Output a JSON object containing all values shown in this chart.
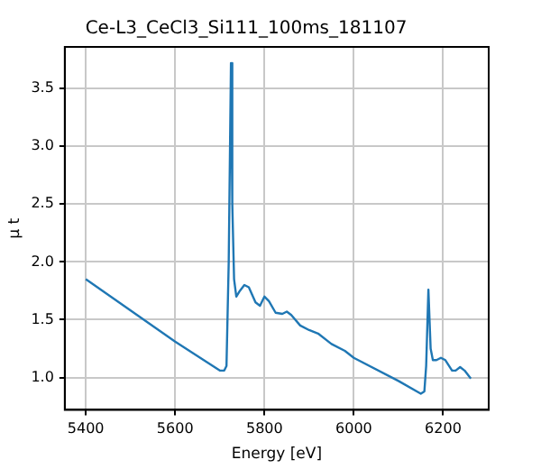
{
  "chart_data": {
    "type": "line",
    "title": "Ce-L3_CeCl3_Si111_100ms_181107",
    "xlabel": "Energy [eV]",
    "ylabel": "μ t",
    "x": [
      5400,
      5600,
      5700,
      5710,
      5715,
      5720,
      5725,
      5728,
      5732,
      5737,
      5745,
      5755,
      5765,
      5780,
      5790,
      5800,
      5810,
      5825,
      5840,
      5850,
      5860,
      5880,
      5900,
      5920,
      5950,
      5980,
      6000,
      6100,
      6150,
      6158,
      6162,
      6167,
      6172,
      6177,
      6185,
      6195,
      6205,
      6220,
      6228,
      6238,
      6248,
      6262
    ],
    "series": [
      {
        "color": "#1f77b4",
        "values": [
          1.85,
          1.31,
          1.06,
          1.06,
          1.1,
          2.0,
          3.72,
          2.5,
          1.85,
          1.7,
          1.75,
          1.8,
          1.78,
          1.65,
          1.62,
          1.7,
          1.66,
          1.56,
          1.55,
          1.57,
          1.54,
          1.45,
          1.41,
          1.38,
          1.29,
          1.23,
          1.17,
          0.97,
          0.86,
          0.88,
          1.1,
          1.76,
          1.25,
          1.15,
          1.15,
          1.17,
          1.15,
          1.06,
          1.06,
          1.09,
          1.06,
          0.99
        ]
      }
    ],
    "xlim": [
      5353,
      6302
    ],
    "ylim": [
      0.72,
      3.86
    ],
    "xticks": [
      5400,
      5600,
      5800,
      6000,
      6200
    ],
    "yticks": [
      {
        "value": 1,
        "label": "1.0"
      },
      {
        "value": 1.5,
        "label": "1.5"
      },
      {
        "value": 2,
        "label": "2.0"
      },
      {
        "value": 2.5,
        "label": "2.5"
      },
      {
        "value": 3,
        "label": "3.0"
      },
      {
        "value": 3.5,
        "label": "3.5"
      }
    ],
    "grid": true,
    "marker": "none",
    "line_style": "solid"
  }
}
